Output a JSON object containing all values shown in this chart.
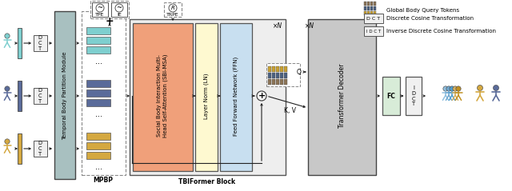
{
  "bg_color": "#ffffff",
  "figure_size": [
    6.4,
    2.39
  ],
  "dpi": 100,
  "skel_color_teal": "#7ecfcf",
  "skel_color_navy": "#5a6b9a",
  "skel_color_gold": "#d4a840",
  "dct_box_color": "#e8e8e8",
  "tbp_module_color": "#a8c0c0",
  "mpbp_dashed_color": "#888888",
  "sbi_block_color": "#f0a07a",
  "ln_block_color": "#fef9d0",
  "ffn_block_color": "#c8dff0",
  "tbiformer_outer_color": "#d8d8d8",
  "transformer_decoder_color": "#c8c8c8",
  "fc_box_color": "#d8ecd8",
  "idct_box_color": "#e8e8e8",
  "token_color1": "#8b7355",
  "token_color2": "#4a6080",
  "token_color3": "#c8a030",
  "label_tbp": "Temporal Body Partition Module",
  "label_sbi": "Social Body Interaction Multi-\nHead Self-Attention (SBI-MSA)",
  "label_ln": "Layer Norm (LN)",
  "label_ffn": "Feed Forward Network (FFN)",
  "label_transformer": "Transformer Decoder",
  "label_fc": "FC",
  "label_dct_v": "D\nC\nT",
  "label_idct_v": "I\nD\nC\nT",
  "label_xN": "×N",
  "label_tpe": "TPE",
  "label_ie": "IE",
  "label_trpe": "TRPE",
  "label_Q": "Q",
  "label_KV": "K, V",
  "label_mpbp": "MPBP",
  "label_tbiformer": "TBIFormer Block",
  "legend_gbqt": "Global Body Query Tokens",
  "legend_dct": "Discrete Cosine Transformation",
  "legend_idct": "Inverse Discrete Cosine Transformation"
}
